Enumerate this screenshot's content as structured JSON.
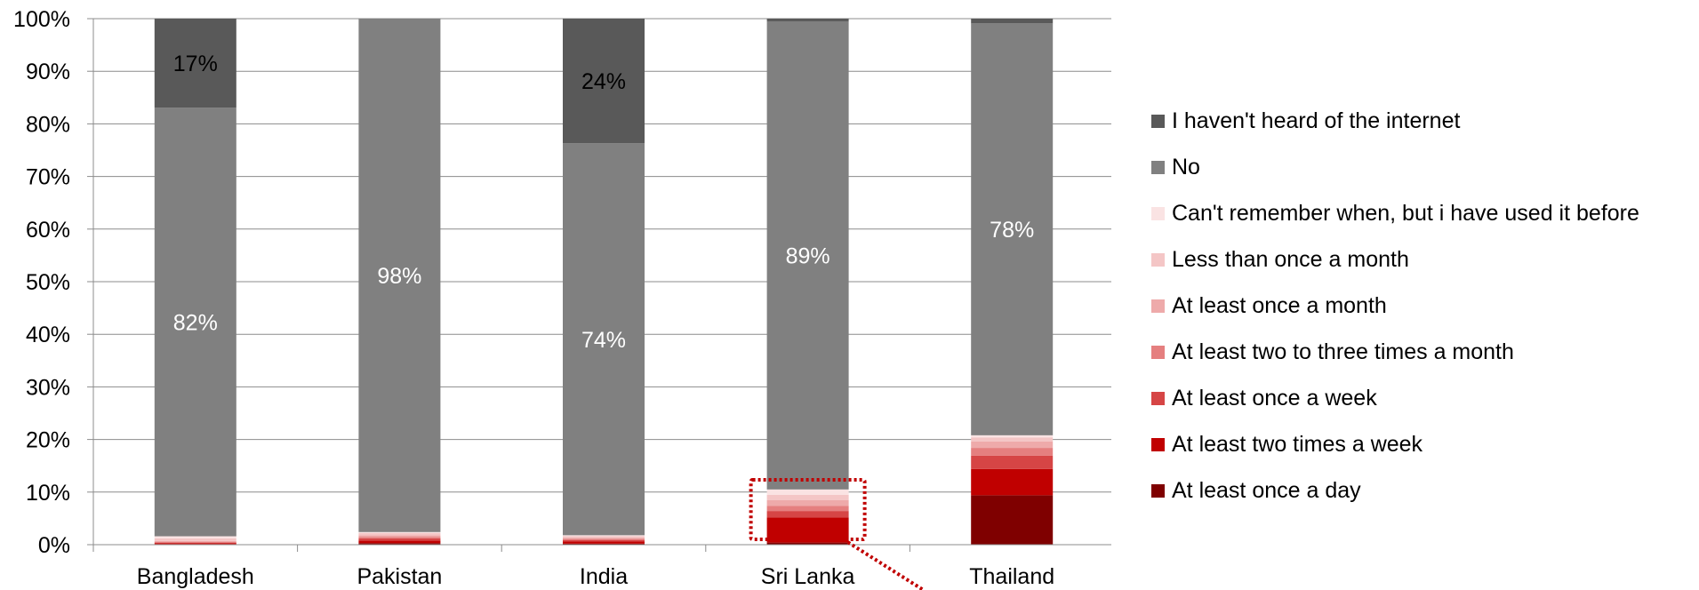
{
  "chart_data": {
    "type": "stacked-bar-100",
    "categories": [
      "Bangladesh",
      "Pakistan",
      "India",
      "Sri Lanka",
      "Thailand"
    ],
    "ylim": [
      0,
      100
    ],
    "yticks": [
      "0%",
      "10%",
      "20%",
      "30%",
      "40%",
      "50%",
      "60%",
      "70%",
      "80%",
      "90%",
      "100%"
    ],
    "grid": true,
    "legend_position": "right",
    "series": [
      {
        "name": "At least once a day",
        "color": "#7f0000",
        "values": [
          0.1,
          0.3,
          0.2,
          0.4,
          9.4
        ]
      },
      {
        "name": "At least two times a week",
        "color": "#c00000",
        "values": [
          0.2,
          0.5,
          0.4,
          4.8,
          5.0
        ]
      },
      {
        "name": "At least once a week",
        "color": "#d64545",
        "values": [
          0.1,
          0.4,
          0.3,
          1.2,
          2.5
        ]
      },
      {
        "name": "At least two to three times a month",
        "color": "#e57f7f",
        "values": [
          0.1,
          0.3,
          0.2,
          1.0,
          1.5
        ]
      },
      {
        "name": "At least once a month",
        "color": "#eeaaaa",
        "values": [
          0.2,
          0.3,
          0.2,
          1.1,
          1.2
        ]
      },
      {
        "name": "Less than once a month",
        "color": "#f4c6c6",
        "values": [
          0.5,
          0.4,
          0.3,
          1.0,
          0.8
        ]
      },
      {
        "name": "Can't remember when, but i have used it before",
        "color": "#fae3e3",
        "values": [
          0.4,
          0.2,
          0.2,
          1.0,
          0.4
        ]
      },
      {
        "name": "No",
        "color": "#808080",
        "values": [
          81.5,
          97.6,
          74.5,
          89.0,
          78.3
        ]
      },
      {
        "name": "I haven't heard of the internet",
        "color": "#595959",
        "values": [
          16.9,
          0.0,
          23.7,
          0.5,
          0.9
        ]
      }
    ],
    "data_labels": [
      {
        "category": "Bangladesh",
        "series": "No",
        "text": "82%"
      },
      {
        "category": "Bangladesh",
        "series": "I haven't heard of the internet",
        "text": "17%"
      },
      {
        "category": "Pakistan",
        "series": "No",
        "text": "98%"
      },
      {
        "category": "India",
        "series": "No",
        "text": "74%"
      },
      {
        "category": "India",
        "series": "I haven't heard of the internet",
        "text": "24%"
      },
      {
        "category": "Sri Lanka",
        "series": "No",
        "text": "89%"
      },
      {
        "category": "Thailand",
        "series": "No",
        "text": "78%"
      }
    ],
    "annotation": {
      "type": "dotted-box-with-pointer",
      "category": "Sri Lanka",
      "y_range": [
        0,
        12
      ],
      "color": "#c00000"
    }
  }
}
